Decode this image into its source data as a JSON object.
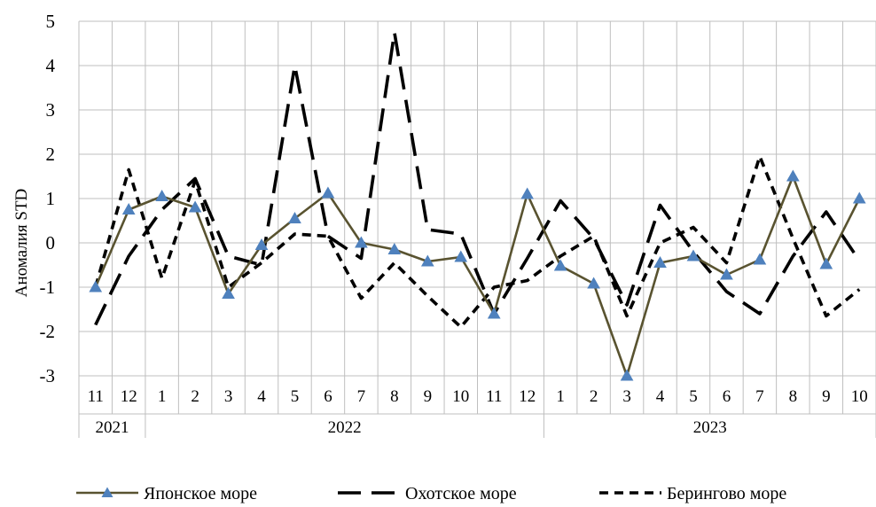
{
  "chart_data": {
    "type": "line",
    "ylabel": "Аномалия STD",
    "ylim": [
      -3,
      5
    ],
    "yticks": [
      -3,
      -2,
      -1,
      0,
      1,
      2,
      3,
      4,
      5
    ],
    "grid": true,
    "legend_position": "bottom",
    "categories": [
      "11",
      "12",
      "1",
      "2",
      "3",
      "4",
      "5",
      "6",
      "7",
      "8",
      "9",
      "10",
      "11",
      "12",
      "1",
      "2",
      "3",
      "4",
      "5",
      "6",
      "7",
      "8",
      "9",
      "10"
    ],
    "years": [
      {
        "label": "2021",
        "count": 2
      },
      {
        "label": "2022",
        "count": 12
      },
      {
        "label": "2023",
        "count": 10
      }
    ],
    "series": [
      {
        "name": "Японское море",
        "style": "solid-triangle",
        "color": "#595330",
        "marker_color": "#4f81bd",
        "values": [
          -1.0,
          0.75,
          1.05,
          0.8,
          -1.15,
          -0.05,
          0.55,
          1.12,
          0.0,
          -0.15,
          -0.42,
          -0.32,
          -1.6,
          1.1,
          -0.52,
          -0.92,
          -3.0,
          -0.45,
          -0.3,
          -0.72,
          -0.38,
          1.5,
          -0.48,
          1.0
        ]
      },
      {
        "name": "Охотское море",
        "style": "long-dash",
        "color": "#000000",
        "values": [
          -1.85,
          -0.3,
          0.75,
          1.45,
          -0.3,
          -0.5,
          4.0,
          0.15,
          -0.35,
          4.75,
          0.3,
          0.2,
          -1.6,
          -0.35,
          0.95,
          0.1,
          -1.4,
          0.85,
          -0.2,
          -1.1,
          -1.6,
          -0.3,
          0.7,
          -0.4
        ]
      },
      {
        "name": "Берингово море",
        "style": "short-dash",
        "color": "#000000",
        "values": [
          -1.0,
          1.65,
          -0.8,
          1.4,
          -1.0,
          -0.45,
          0.2,
          0.15,
          -1.25,
          -0.45,
          -1.2,
          -1.9,
          -1.0,
          -0.85,
          -0.3,
          0.15,
          -1.65,
          0.0,
          0.35,
          -0.45,
          1.95,
          0.1,
          -1.65,
          -1.05
        ]
      }
    ]
  }
}
